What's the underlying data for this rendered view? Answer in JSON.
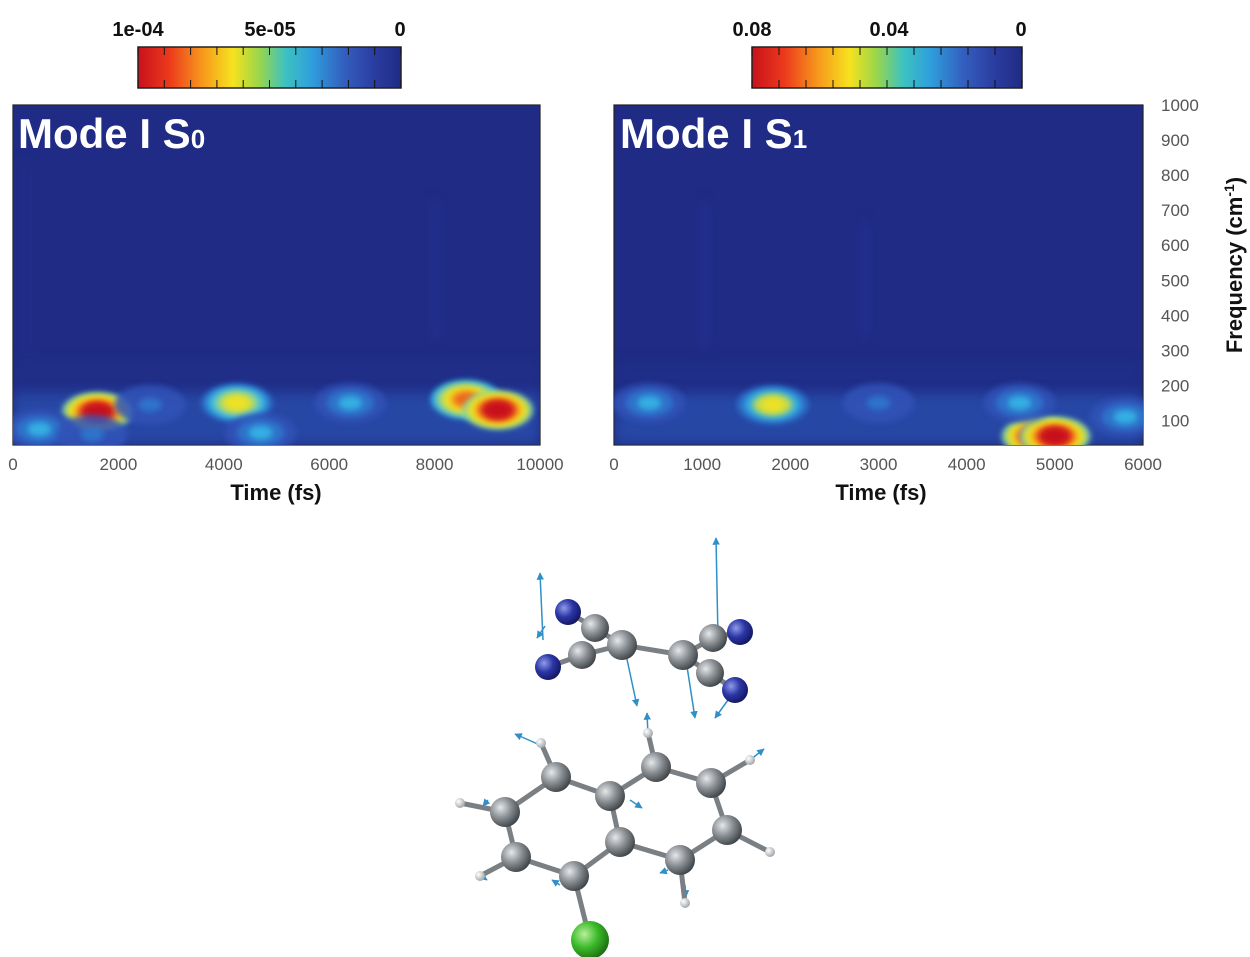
{
  "colors": {
    "background": "#1f2b85",
    "colormap": [
      "#1f2b85",
      "#2b3ca0",
      "#3352b8",
      "#2f79cf",
      "#35b9e6",
      "#7fd0b0",
      "#d4e03a",
      "#f6e21e",
      "#f7a41c",
      "#ec5a1c",
      "#c8111c"
    ]
  },
  "chart_data": [
    {
      "type": "heatmap",
      "title": "Mode I S",
      "title_subscript": "0",
      "xlabel": "Time (fs)",
      "ylabel": "",
      "xlim": [
        0,
        10000
      ],
      "ylim": [
        30,
        1000
      ],
      "x_ticks": [
        0,
        2000,
        4000,
        6000,
        8000,
        10000
      ],
      "y_ticks": [],
      "colorbar": {
        "ticks": [
          "1e-04",
          "5e-05",
          "0"
        ],
        "range": [
          0.0001,
          0
        ]
      },
      "features": [
        {
          "x": 1600,
          "y": 125,
          "value": 0.0001
        },
        {
          "x": 2600,
          "y": 145,
          "value": 2e-05
        },
        {
          "x": 4250,
          "y": 150,
          "value": 6e-05
        },
        {
          "x": 4700,
          "y": 65,
          "value": 3e-05
        },
        {
          "x": 6400,
          "y": 150,
          "value": 3e-05
        },
        {
          "x": 8600,
          "y": 160,
          "value": 8e-05
        },
        {
          "x": 9200,
          "y": 130,
          "value": 0.0001
        },
        {
          "x": 500,
          "y": 75,
          "value": 3e-05
        },
        {
          "x": 1500,
          "y": 60,
          "value": 2e-05
        }
      ]
    },
    {
      "type": "heatmap",
      "title": "Mode I S",
      "title_subscript": "1",
      "xlabel": "Time (fs)",
      "ylabel": "Frequency (cm-1)",
      "xlim": [
        0,
        6000
      ],
      "ylim": [
        30,
        1000
      ],
      "x_ticks": [
        0,
        1000,
        2000,
        3000,
        4000,
        5000,
        6000
      ],
      "y_ticks": [
        100,
        200,
        300,
        400,
        500,
        600,
        700,
        800,
        900,
        1000
      ],
      "colorbar": {
        "ticks": [
          "0.08",
          "0.04",
          "0"
        ],
        "range": [
          0.08,
          0
        ]
      },
      "features": [
        {
          "x": 1800,
          "y": 145,
          "value": 0.045
        },
        {
          "x": 400,
          "y": 150,
          "value": 0.02
        },
        {
          "x": 4800,
          "y": 55,
          "value": 0.08
        },
        {
          "x": 5000,
          "y": 55,
          "value": 0.08
        },
        {
          "x": 4600,
          "y": 150,
          "value": 0.025
        },
        {
          "x": 5800,
          "y": 110,
          "value": 0.025
        },
        {
          "x": 3000,
          "y": 150,
          "value": 0.012
        }
      ]
    }
  ]
}
